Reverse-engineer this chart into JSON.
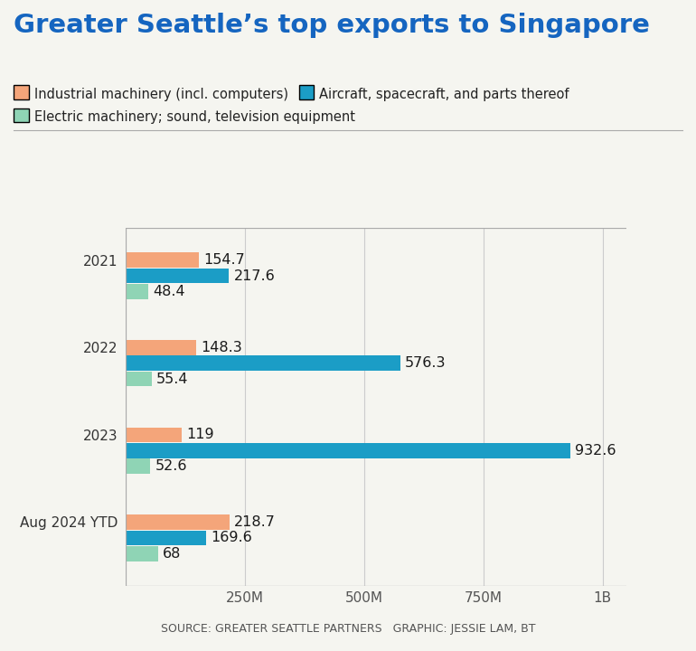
{
  "title": "Greater Seattle’s top exports to Singapore",
  "categories": [
    "2021",
    "2022",
    "2023",
    "Aug 2024 YTD"
  ],
  "series": {
    "industrial": {
      "label": "Industrial machinery (incl. computers)",
      "color": "#F4A57A",
      "values": [
        154.7,
        148.3,
        119,
        218.7
      ]
    },
    "aircraft": {
      "label": "Aircraft, spacecraft, and parts thereof",
      "color": "#1B9DC6",
      "values": [
        217.6,
        576.3,
        932.6,
        169.6
      ]
    },
    "electric": {
      "label": "Electric machinery; sound, television equipment",
      "color": "#8FD4B5",
      "values": [
        48.4,
        55.4,
        52.6,
        68
      ]
    }
  },
  "xlim": [
    0,
    1050
  ],
  "xticks": [
    250,
    500,
    750,
    1000
  ],
  "xticklabels": [
    "250M",
    "500M",
    "750M",
    "1B"
  ],
  "source_text": "SOURCE: GREATER SEATTLE PARTNERS   GRAPHIC: JESSIE LAM, BT",
  "background_color": "#F5F5F0",
  "bar_height": 0.18,
  "title_color": "#1565C0",
  "title_fontsize": 21,
  "legend_fontsize": 10.5,
  "tick_fontsize": 11,
  "value_fontsize": 11.5,
  "source_fontsize": 9,
  "ylabel_fontsize": 11
}
